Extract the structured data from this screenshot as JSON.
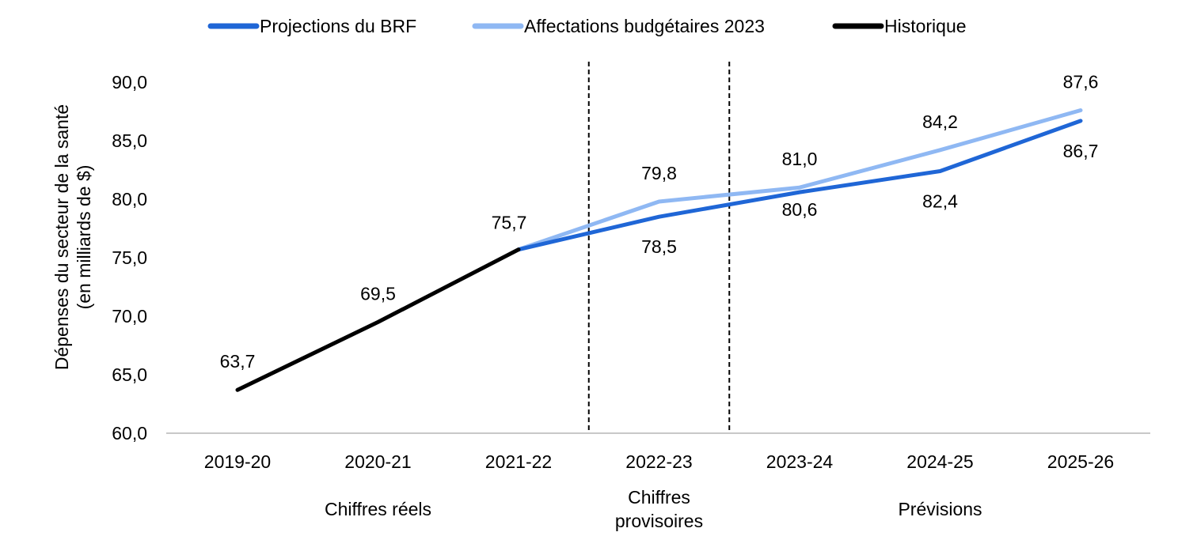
{
  "chart_data": {
    "type": "line",
    "categories": [
      "2019-20",
      "2020-21",
      "2021-22",
      "2022-23",
      "2023-24",
      "2024-25",
      "2025-26"
    ],
    "ylabel_lines": [
      "Dépenses du secteur de la santé",
      "(en milliards de $)"
    ],
    "ylim": [
      60.0,
      90.0
    ],
    "yticks": [
      "60,0",
      "65,0",
      "70,0",
      "75,0",
      "80,0",
      "85,0",
      "90,0"
    ],
    "grid": false,
    "legend_position": "top",
    "series": [
      {
        "name": "Projections du BRF",
        "color": "#1f66d6",
        "values": [
          null,
          null,
          75.7,
          78.5,
          80.6,
          82.4,
          86.7
        ],
        "labels": [
          null,
          null,
          null,
          "78,5",
          "80,6",
          "82,4",
          "86,7"
        ]
      },
      {
        "name": "Affectations budgétaires 2023",
        "color": "#8fb8f3",
        "values": [
          null,
          null,
          75.7,
          79.8,
          81.0,
          84.2,
          87.6
        ],
        "labels": [
          null,
          null,
          null,
          "79,8",
          "81,0",
          "84,2",
          "87,6"
        ]
      },
      {
        "name": "Historique",
        "color": "#000000",
        "values": [
          63.7,
          69.5,
          75.7,
          null,
          null,
          null,
          null
        ],
        "labels": [
          "63,7",
          "69,5",
          "75,7",
          null,
          null,
          null,
          null
        ]
      }
    ],
    "sections": [
      {
        "label_lines": [
          "Chiffres réels"
        ]
      },
      {
        "label_lines": [
          "Chiffres",
          "provisoires"
        ]
      },
      {
        "label_lines": [
          "Prévisions"
        ]
      }
    ],
    "dividers_after_category": [
      "2021-22",
      "2022-23"
    ]
  }
}
